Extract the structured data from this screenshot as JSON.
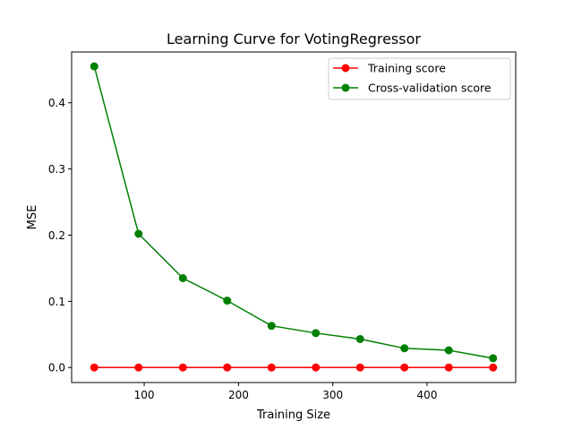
{
  "chart_data": {
    "type": "line",
    "title": "Learning Curve for VotingRegressor",
    "xlabel": "Training Size",
    "ylabel": "MSE",
    "xlim": [
      23,
      494
    ],
    "ylim": [
      -0.0227,
      0.4768
    ],
    "xticks": [
      "100",
      "200",
      "300",
      "400"
    ],
    "yticks": [
      "0.0",
      "0.1",
      "0.2",
      "0.3",
      "0.4"
    ],
    "x": [
      47,
      94,
      141,
      188,
      235,
      282,
      329,
      376,
      423,
      470
    ],
    "series": [
      {
        "name": "Training score",
        "color": "#ff0000",
        "values": [
          0.0,
          0.0,
          0.0,
          0.0,
          0.0,
          0.0,
          0.0,
          0.0,
          0.0,
          0.0
        ]
      },
      {
        "name": "Cross-validation score",
        "color": "#008000",
        "values": [
          0.455,
          0.202,
          0.135,
          0.101,
          0.063,
          0.052,
          0.043,
          0.029,
          0.026,
          0.014
        ]
      }
    ],
    "grid": false,
    "legend_position": "top-right"
  }
}
